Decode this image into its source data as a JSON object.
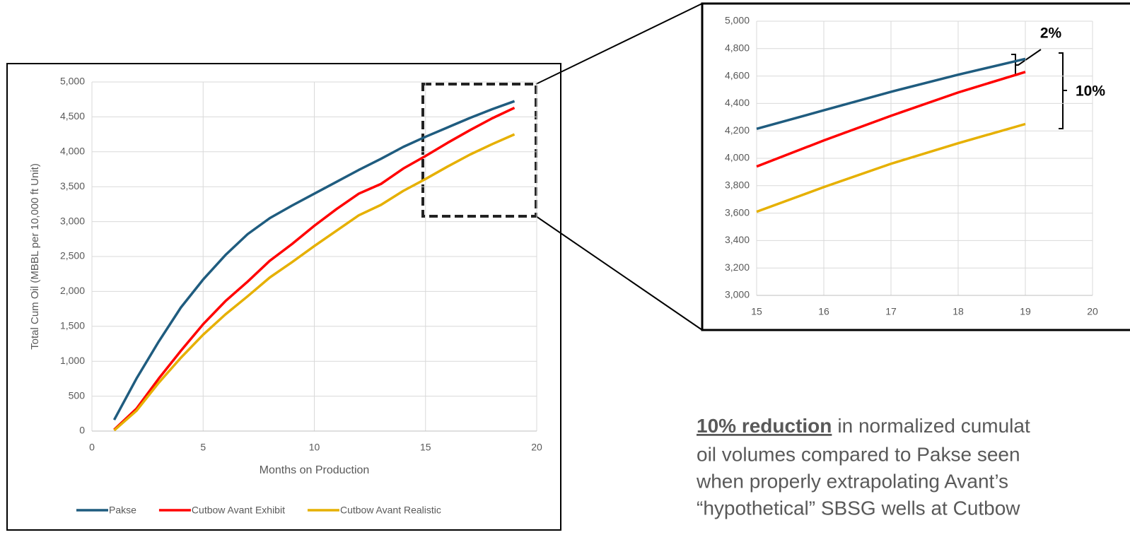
{
  "chart_data": [
    {
      "type": "line",
      "y_label": "Total Cum Oil (MBBL per 10,000 ft Unit)",
      "x_label": "Months on Production",
      "x": [
        1,
        2,
        3,
        4,
        5,
        6,
        7,
        8,
        9,
        10,
        11,
        12,
        13,
        14,
        15,
        16,
        17,
        18,
        19
      ],
      "series": [
        {
          "name": "Pakse",
          "color": "#1f5c7f",
          "values": [
            160,
            750,
            1280,
            1770,
            2170,
            2520,
            2820,
            3050,
            3230,
            3400,
            3570,
            3740,
            3900,
            4070,
            4215,
            4350,
            4485,
            4610,
            4725
          ]
        },
        {
          "name": "Cutbow Avant Exhibit",
          "color": "#ff0000",
          "values": [
            20,
            320,
            750,
            1150,
            1530,
            1860,
            2140,
            2440,
            2680,
            2940,
            3180,
            3400,
            3540,
            3760,
            3940,
            4130,
            4310,
            4480,
            4630
          ]
        },
        {
          "name": "Cutbow Avant Realistic",
          "color": "#e6b000",
          "values": [
            10,
            290,
            690,
            1050,
            1380,
            1670,
            1930,
            2200,
            2420,
            2650,
            2870,
            3090,
            3240,
            3440,
            3610,
            3790,
            3960,
            4110,
            4250
          ]
        }
      ],
      "xlim": [
        0,
        20
      ],
      "xticks": [
        0,
        5,
        10,
        15,
        20
      ],
      "ylim": [
        0,
        5000
      ],
      "yticks": [
        0,
        500,
        {
          "value": 1000,
          "label": "1,000"
        },
        {
          "value": 1500,
          "label": "1,500"
        },
        {
          "value": 2000,
          "label": "2,000"
        },
        {
          "value": 2500,
          "label": "2,500"
        },
        {
          "value": 3000,
          "label": "3,000"
        },
        {
          "value": 3500,
          "label": "3,500"
        },
        {
          "value": 4000,
          "label": "4,000"
        },
        {
          "value": 4500,
          "label": "4,500"
        },
        {
          "value": 5000,
          "label": "5,000"
        }
      ],
      "grid": true,
      "legend": "bottom"
    },
    {
      "type": "line",
      "x": [
        15,
        16,
        17,
        18,
        19
      ],
      "series": [
        {
          "color": "#1f5c7f",
          "values": [
            4215,
            4350,
            4485,
            4610,
            4725
          ]
        },
        {
          "color": "#ff0000",
          "values": [
            3940,
            4130,
            4310,
            4480,
            4630
          ]
        },
        {
          "color": "#e6b000",
          "values": [
            3610,
            3790,
            3960,
            4110,
            4250
          ]
        }
      ],
      "xlim": [
        15,
        20
      ],
      "xticks": [
        15,
        16,
        17,
        18,
        19,
        20
      ],
      "ylim": [
        3000,
        5000
      ],
      "yticks": [
        {
          "value": 3000,
          "label": "3,000"
        },
        {
          "value": 3200,
          "label": "3,200"
        },
        {
          "value": 3400,
          "label": "3,400"
        },
        {
          "value": 3600,
          "label": "3,600"
        },
        {
          "value": 3800,
          "label": "3,800"
        },
        {
          "value": 4000,
          "label": "4,000"
        },
        {
          "value": 4200,
          "label": "4,200"
        },
        {
          "value": 4400,
          "label": "4,400"
        },
        {
          "value": 4600,
          "label": "4,600"
        },
        {
          "value": 4800,
          "label": "4,800"
        },
        {
          "value": 5000,
          "label": "5,000"
        }
      ],
      "grid": true,
      "annotations": [
        "2%",
        "10%"
      ]
    }
  ],
  "annotation": {
    "highlight": "10% reduction",
    "lines": [
      "in normalized cumulat",
      "oil volumes compared to Pakse seen",
      "when properly extrapolating Avant’s",
      "“hypothetical” SBSG wells at Cutbow"
    ]
  }
}
